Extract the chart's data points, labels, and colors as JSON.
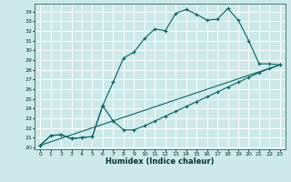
{
  "xlabel": "Humidex (Indice chaleur)",
  "bg_color": "#cce8e8",
  "grid_color": "#ffffff",
  "line_color": "#006666",
  "xlim": [
    -0.5,
    23.5
  ],
  "ylim": [
    19.8,
    34.8
  ],
  "xticks": [
    0,
    1,
    2,
    3,
    4,
    5,
    6,
    7,
    8,
    9,
    10,
    11,
    12,
    13,
    14,
    15,
    16,
    17,
    18,
    19,
    20,
    21,
    22,
    23
  ],
  "yticks": [
    20,
    21,
    22,
    23,
    24,
    25,
    26,
    27,
    28,
    29,
    30,
    31,
    32,
    33,
    34
  ],
  "line1_x": [
    0,
    1,
    2,
    3,
    4,
    5,
    6,
    7,
    8,
    9,
    10,
    11,
    12,
    13,
    14,
    15,
    16,
    17,
    18,
    19,
    20,
    21,
    22,
    23
  ],
  "line1_y": [
    20.2,
    21.2,
    21.3,
    20.9,
    21.0,
    21.1,
    24.3,
    26.7,
    29.2,
    29.8,
    31.2,
    32.2,
    32.0,
    33.8,
    34.2,
    33.7,
    33.1,
    33.2,
    34.3,
    33.1,
    31.0,
    28.6,
    28.6,
    28.5
  ],
  "line2_x": [
    0,
    1,
    2,
    3,
    4,
    5,
    6,
    7,
    8,
    9,
    10,
    11,
    12,
    13,
    14,
    15,
    16,
    17,
    18,
    19,
    20,
    21,
    22,
    23
  ],
  "line2_y": [
    20.2,
    21.2,
    21.3,
    20.9,
    21.0,
    21.1,
    24.3,
    22.7,
    21.8,
    21.8,
    22.2,
    22.7,
    23.2,
    23.7,
    24.2,
    24.7,
    25.2,
    25.7,
    26.2,
    26.7,
    27.2,
    27.7,
    28.1,
    28.5
  ],
  "line3_x": [
    0,
    23
  ],
  "line3_y": [
    20.2,
    28.5
  ]
}
